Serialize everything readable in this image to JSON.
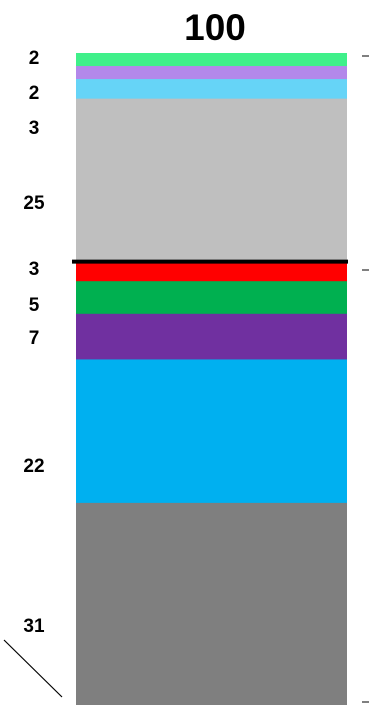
{
  "chart_data": {
    "type": "bar",
    "stacked": true,
    "title": "100",
    "total": 100,
    "segments": [
      {
        "label": "2",
        "value": 2,
        "color": "#3FF08A"
      },
      {
        "label": "2",
        "value": 2,
        "color": "#B388EA"
      },
      {
        "label": "3",
        "value": 3,
        "color": "#66D4F7"
      },
      {
        "label": "25",
        "value": 25,
        "color": "#BFBFBF"
      },
      {
        "label": "3",
        "value": 3,
        "color": "#FF0000"
      },
      {
        "label": "5",
        "value": 5,
        "color": "#00B050"
      },
      {
        "label": "7",
        "value": 7,
        "color": "#7030A0"
      },
      {
        "label": "22",
        "value": 22,
        "color": "#00B0F0"
      },
      {
        "label": "31",
        "value": 31,
        "color": "#7F7F7F"
      }
    ],
    "divider_after_segment": 4,
    "divider_color": "#000000"
  }
}
